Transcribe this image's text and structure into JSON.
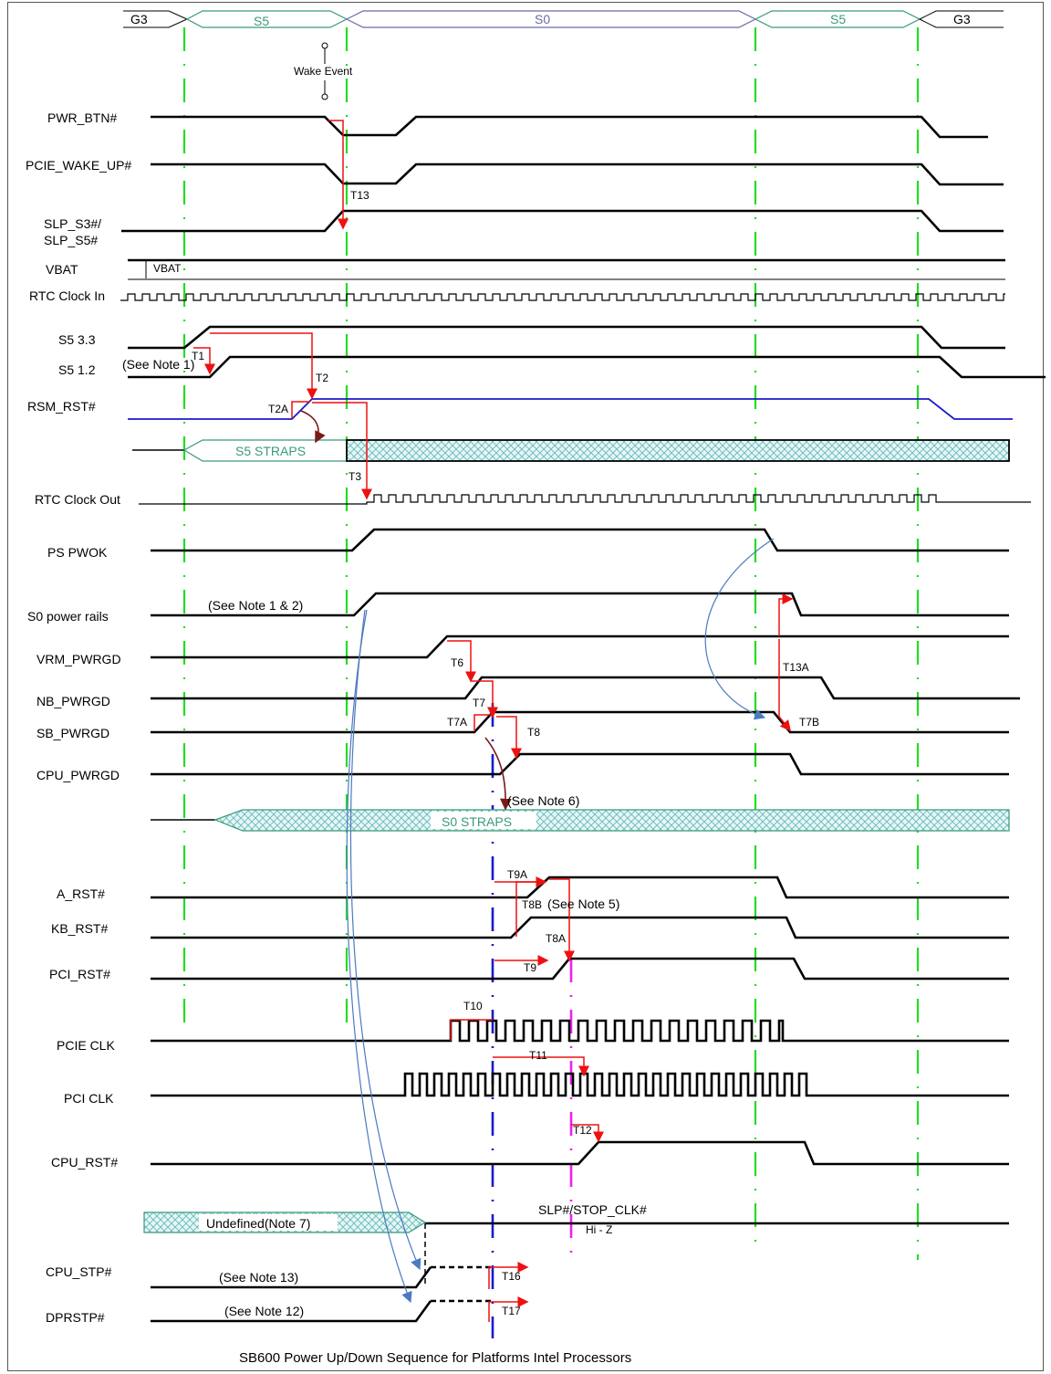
{
  "states": {
    "g3_left": "G3",
    "s5_left": "S5",
    "s0": "S0",
    "s5_right": "S5",
    "g3_right": "G3"
  },
  "wake_event": "Wake Event",
  "signals": {
    "pwr_btn": "PWR_BTN#",
    "pcie_wake_up": "PCIE_WAKE_UP#",
    "slp_s3": "SLP_S3#/",
    "slp_s5": "SLP_S5#",
    "vbat": "VBAT",
    "rtc_clock_in": "RTC Clock In",
    "s5_33": "S5 3.3",
    "s5_12": "S5 1.2",
    "rsm_rst": "RSM_RST#",
    "rtc_clock_out": "RTC Clock Out",
    "ps_pwok": "PS PWOK",
    "s0_power_rails": "S0 power rails",
    "vrm_pwrgd": "VRM_PWRGD",
    "nb_pwrgd": "NB_PWRGD",
    "sb_pwrgd": "SB_PWRGD",
    "cpu_pwrgd": "CPU_PWRGD",
    "a_rst": "A_RST#",
    "kb_rst": "KB_RST#",
    "pci_rst": "PCI_RST#",
    "pcie_clk": "PCIE CLK",
    "pci_clk": "PCI CLK",
    "cpu_rst": "CPU_RST#",
    "cpu_stp": "CPU_STP#",
    "dprstp": "DPRSTP#"
  },
  "bus_labels": {
    "s5_straps": "S5 STRAPS",
    "s0_straps": "S0 STRAPS",
    "undefined": "Undefined(Note 7)",
    "slp_stop_clk": "SLP#/STOP_CLK#",
    "hi_z": "Hi - Z",
    "vbat_tick": "VBAT"
  },
  "notes": {
    "note1": "(See Note 1)",
    "note12": "(See Note 1 & 2)",
    "note6": "(See Note 6)",
    "note5": "(See Note 5)",
    "note13": "(See Note 13)",
    "note12b": "(See Note 12)"
  },
  "timing": {
    "t1": "T1",
    "t2": "T2",
    "t2a": "T2A",
    "t3": "T3",
    "t6": "T6",
    "t7": "T7",
    "t7a": "T7A",
    "t8": "T8",
    "t9a": "T9A",
    "t8b": "T8B",
    "t8a": "T8A",
    "t9": "T9",
    "t10": "T10",
    "t11": "T11",
    "t12": "T12",
    "t13": "T13",
    "t13a": "T13A",
    "t7b": "T7B",
    "t16": "T16",
    "t17": "T17"
  },
  "caption": "SB600 Power Up/Down Sequence for Platforms Intel Processors",
  "colors": {
    "green": "#22dd22",
    "blue": "#1a1acc",
    "magenta": "#ee22ee",
    "red": "#ee1111",
    "teal": "#3a9a7a",
    "s0_purple": "#6a6aaa"
  }
}
